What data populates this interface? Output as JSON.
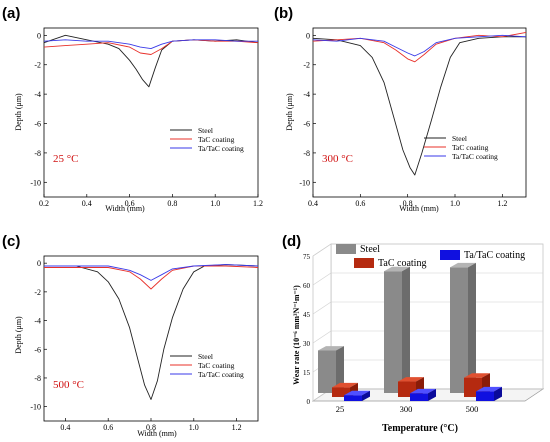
{
  "figure": {
    "panels": [
      {
        "label": "(a)",
        "temperature": "25 °C",
        "xlabel": "Width (mm)",
        "ylabel": "Depth (μm)",
        "legend": [
          "Steel",
          "TaC coating",
          "Ta/TaC coating"
        ]
      },
      {
        "label": "(b)",
        "temperature": "300 °C",
        "xlabel": "Width (mm)",
        "ylabel": "Depth (μm)",
        "legend": [
          "Steel",
          "TaC coating",
          "Ta/TaC coating"
        ]
      },
      {
        "label": "(c)",
        "temperature": "500 °C",
        "xlabel": "Width (mm)",
        "ylabel": "Depth (μm)",
        "legend": [
          "Steel",
          "TaC coating",
          "Ta/TaC coating"
        ]
      },
      {
        "label": "(d)",
        "xlabel": "Temperature (°C)",
        "ylabel": "Wear rate (10⁻⁶ mm³N⁻¹m⁻¹)",
        "legend": [
          "Steel",
          "TaC coating",
          "Ta/TaC coating"
        ]
      }
    ]
  },
  "colors": {
    "steel": "#222222",
    "tac": "#e8302a",
    "tatac": "#3a3ae8",
    "bar_steel": "#8a8a8a",
    "bar_tac": "#b52a10",
    "bar_tatac": "#1010e0",
    "temp_label": "#d01010"
  },
  "chart_data": [
    {
      "type": "line",
      "title": "",
      "xlabel": "Width (mm)",
      "ylabel": "Depth (μm)",
      "xlim": [
        0.2,
        1.2
      ],
      "ylim": [
        -11,
        0.5
      ],
      "xticks": [
        "0.2",
        "0.4",
        "0.6",
        "0.8",
        "1.0",
        "1.2"
      ],
      "yticks": [
        "0",
        "-2",
        "-4",
        "-6",
        "-8",
        "-10"
      ],
      "series": [
        {
          "name": "Steel",
          "x": [
            0.2,
            0.3,
            0.4,
            0.5,
            0.55,
            0.6,
            0.63,
            0.66,
            0.69,
            0.72,
            0.75,
            0.8,
            0.9,
            1.0,
            1.1,
            1.2
          ],
          "y": [
            -0.5,
            0.0,
            -0.3,
            -0.6,
            -0.9,
            -1.7,
            -2.3,
            -3.0,
            -3.5,
            -2.2,
            -1.0,
            -0.4,
            -0.3,
            -0.4,
            -0.3,
            -0.5
          ]
        },
        {
          "name": "TaC coating",
          "x": [
            0.2,
            0.3,
            0.4,
            0.5,
            0.6,
            0.65,
            0.7,
            0.75,
            0.8,
            0.9,
            1.0,
            1.1,
            1.2
          ],
          "y": [
            -0.8,
            -0.7,
            -0.6,
            -0.5,
            -0.8,
            -1.2,
            -1.3,
            -0.9,
            -0.4,
            -0.3,
            -0.4,
            -0.4,
            -0.5
          ]
        },
        {
          "name": "Ta/TaC coating",
          "x": [
            0.2,
            0.3,
            0.4,
            0.5,
            0.6,
            0.65,
            0.7,
            0.75,
            0.8,
            0.9,
            1.0,
            1.1,
            1.2
          ],
          "y": [
            -0.4,
            -0.3,
            -0.4,
            -0.4,
            -0.6,
            -0.8,
            -0.9,
            -0.6,
            -0.4,
            -0.3,
            -0.3,
            -0.4,
            -0.4
          ]
        }
      ]
    },
    {
      "type": "line",
      "title": "",
      "xlabel": "Width (mm)",
      "ylabel": "Depth (μm)",
      "xlim": [
        0.4,
        1.3
      ],
      "ylim": [
        -11,
        0.5
      ],
      "xticks": [
        "0.4",
        "0.6",
        "0.8",
        "1.0",
        "1.2"
      ],
      "yticks": [
        "0",
        "-2",
        "-4",
        "-6",
        "-8",
        "-10"
      ],
      "series": [
        {
          "name": "Steel",
          "x": [
            0.4,
            0.5,
            0.6,
            0.65,
            0.7,
            0.74,
            0.78,
            0.81,
            0.83,
            0.86,
            0.9,
            0.94,
            0.98,
            1.02,
            1.1,
            1.2,
            1.3
          ],
          "y": [
            -0.2,
            -0.3,
            -0.7,
            -1.5,
            -3.2,
            -5.5,
            -7.8,
            -9.0,
            -9.5,
            -8.0,
            -5.8,
            -3.5,
            -1.5,
            -0.5,
            -0.2,
            -0.1,
            -0.1
          ]
        },
        {
          "name": "TaC coating",
          "x": [
            0.4,
            0.5,
            0.6,
            0.7,
            0.75,
            0.8,
            0.83,
            0.87,
            0.92,
            1.0,
            1.1,
            1.2,
            1.3
          ],
          "y": [
            -0.4,
            -0.3,
            -0.2,
            -0.5,
            -1.0,
            -1.6,
            -1.8,
            -1.3,
            -0.6,
            -0.2,
            0.0,
            -0.1,
            0.2
          ]
        },
        {
          "name": "Ta/TaC coating",
          "x": [
            0.4,
            0.5,
            0.6,
            0.7,
            0.75,
            0.8,
            0.83,
            0.87,
            0.92,
            1.0,
            1.1,
            1.2,
            1.3
          ],
          "y": [
            -0.3,
            -0.4,
            -0.2,
            -0.4,
            -0.8,
            -1.2,
            -1.4,
            -1.1,
            -0.5,
            -0.2,
            -0.1,
            0.0,
            -0.1
          ]
        }
      ]
    },
    {
      "type": "line",
      "title": "",
      "xlabel": "Width (mm)",
      "ylabel": "Depth (μm)",
      "xlim": [
        0.3,
        1.3
      ],
      "ylim": [
        -11,
        0.5
      ],
      "xticks": [
        "0.4",
        "0.6",
        "0.8",
        "1.0",
        "1.2"
      ],
      "yticks": [
        "0",
        "-2",
        "-4",
        "-6",
        "-8",
        "-10"
      ],
      "series": [
        {
          "name": "Steel",
          "x": [
            0.3,
            0.45,
            0.55,
            0.6,
            0.65,
            0.7,
            0.74,
            0.77,
            0.8,
            0.83,
            0.86,
            0.9,
            0.95,
            1.0,
            1.05,
            1.15,
            1.3
          ],
          "y": [
            -0.2,
            -0.2,
            -0.6,
            -1.3,
            -2.5,
            -4.5,
            -6.8,
            -8.5,
            -9.5,
            -8.2,
            -6.0,
            -3.8,
            -1.8,
            -0.6,
            -0.2,
            -0.1,
            -0.2
          ]
        },
        {
          "name": "TaC coating",
          "x": [
            0.3,
            0.45,
            0.6,
            0.7,
            0.75,
            0.8,
            0.85,
            0.9,
            1.0,
            1.15,
            1.3
          ],
          "y": [
            -0.3,
            -0.3,
            -0.3,
            -0.6,
            -1.1,
            -1.8,
            -1.1,
            -0.5,
            -0.2,
            -0.2,
            -0.3
          ]
        },
        {
          "name": "Ta/TaC coating",
          "x": [
            0.3,
            0.45,
            0.6,
            0.7,
            0.75,
            0.8,
            0.85,
            0.9,
            1.0,
            1.15,
            1.3
          ],
          "y": [
            -0.2,
            -0.2,
            -0.2,
            -0.5,
            -0.8,
            -1.2,
            -0.8,
            -0.4,
            -0.2,
            -0.1,
            -0.2
          ]
        }
      ]
    },
    {
      "type": "bar",
      "title": "",
      "xlabel": "Temperature (°C)",
      "ylabel": "Wear rate (10⁻⁶ mm³N⁻¹m⁻¹)",
      "categories": [
        "25",
        "300",
        "500"
      ],
      "ylim": [
        0,
        75
      ],
      "yticks": [
        "0",
        "15",
        "30",
        "45",
        "60",
        "75"
      ],
      "series": [
        {
          "name": "Steel",
          "values": [
            22,
            63,
            65
          ]
        },
        {
          "name": "TaC coating",
          "values": [
            5,
            8,
            10
          ]
        },
        {
          "name": "Ta/TaC coating",
          "values": [
            3,
            4,
            5
          ]
        }
      ]
    }
  ]
}
